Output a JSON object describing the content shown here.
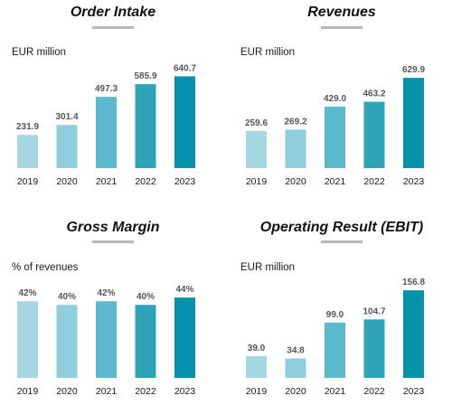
{
  "colors": [
    "#a6d8e4",
    "#8fcedd",
    "#5ab9cc",
    "#2ea4b9",
    "#0592ab"
  ],
  "title_underline_color": "#b8b8b8",
  "chart_data": [
    {
      "type": "bar",
      "title": "Order Intake",
      "unit": "EUR million",
      "categories": [
        "2019",
        "2020",
        "2021",
        "2022",
        "2023"
      ],
      "values": [
        231.9,
        301.4,
        497.3,
        585.9,
        640.7
      ],
      "value_labels": [
        "231.9",
        "301.4",
        "497.3",
        "585.9",
        "640.7"
      ],
      "ylim": [
        0,
        700
      ]
    },
    {
      "type": "bar",
      "title": "Revenues",
      "unit": "EUR million",
      "categories": [
        "2019",
        "2020",
        "2021",
        "2022",
        "2023"
      ],
      "values": [
        259.6,
        269.2,
        429.0,
        463.2,
        629.9
      ],
      "value_labels": [
        "259.6",
        "269.2",
        "429.0",
        "463.2",
        "629.9"
      ],
      "ylim": [
        0,
        700
      ]
    },
    {
      "type": "bar",
      "title": "Gross Margin",
      "unit": "% of revenues",
      "categories": [
        "2019",
        "2020",
        "2021",
        "2022",
        "2023"
      ],
      "values": [
        42,
        40,
        42,
        40,
        44
      ],
      "value_labels": [
        "42%",
        "40%",
        "42%",
        "40%",
        "44%"
      ],
      "ylim": [
        0,
        52
      ]
    },
    {
      "type": "bar",
      "title": "Operating Result (EBIT)",
      "unit": "EUR million",
      "categories": [
        "2019",
        "2020",
        "2021",
        "2022",
        "2023"
      ],
      "values": [
        39.0,
        34.8,
        99.0,
        104.7,
        156.8
      ],
      "value_labels": [
        "39.0",
        "34.8",
        "99.0",
        "104.7",
        "156.8"
      ],
      "ylim": [
        0,
        170
      ]
    }
  ]
}
